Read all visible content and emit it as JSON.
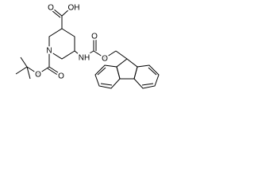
{
  "labels": [
    "O",
    "OH",
    "N",
    "NH",
    "O",
    "O",
    "O",
    "O"
  ]
}
